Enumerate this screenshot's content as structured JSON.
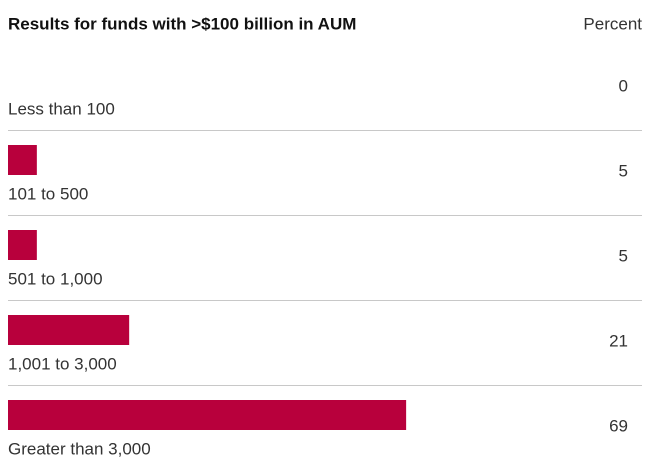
{
  "chart_data": {
    "type": "bar",
    "orientation": "horizontal",
    "title": "Results for funds with >$100 billion in AUM",
    "value_header": "Percent",
    "categories": [
      "Less than 100",
      "101 to 500",
      "501 to 1,000",
      "1,001 to 3,000",
      "Greater than 3,000"
    ],
    "values": [
      0,
      5,
      5,
      21,
      69
    ],
    "color": "#b8003c"
  }
}
